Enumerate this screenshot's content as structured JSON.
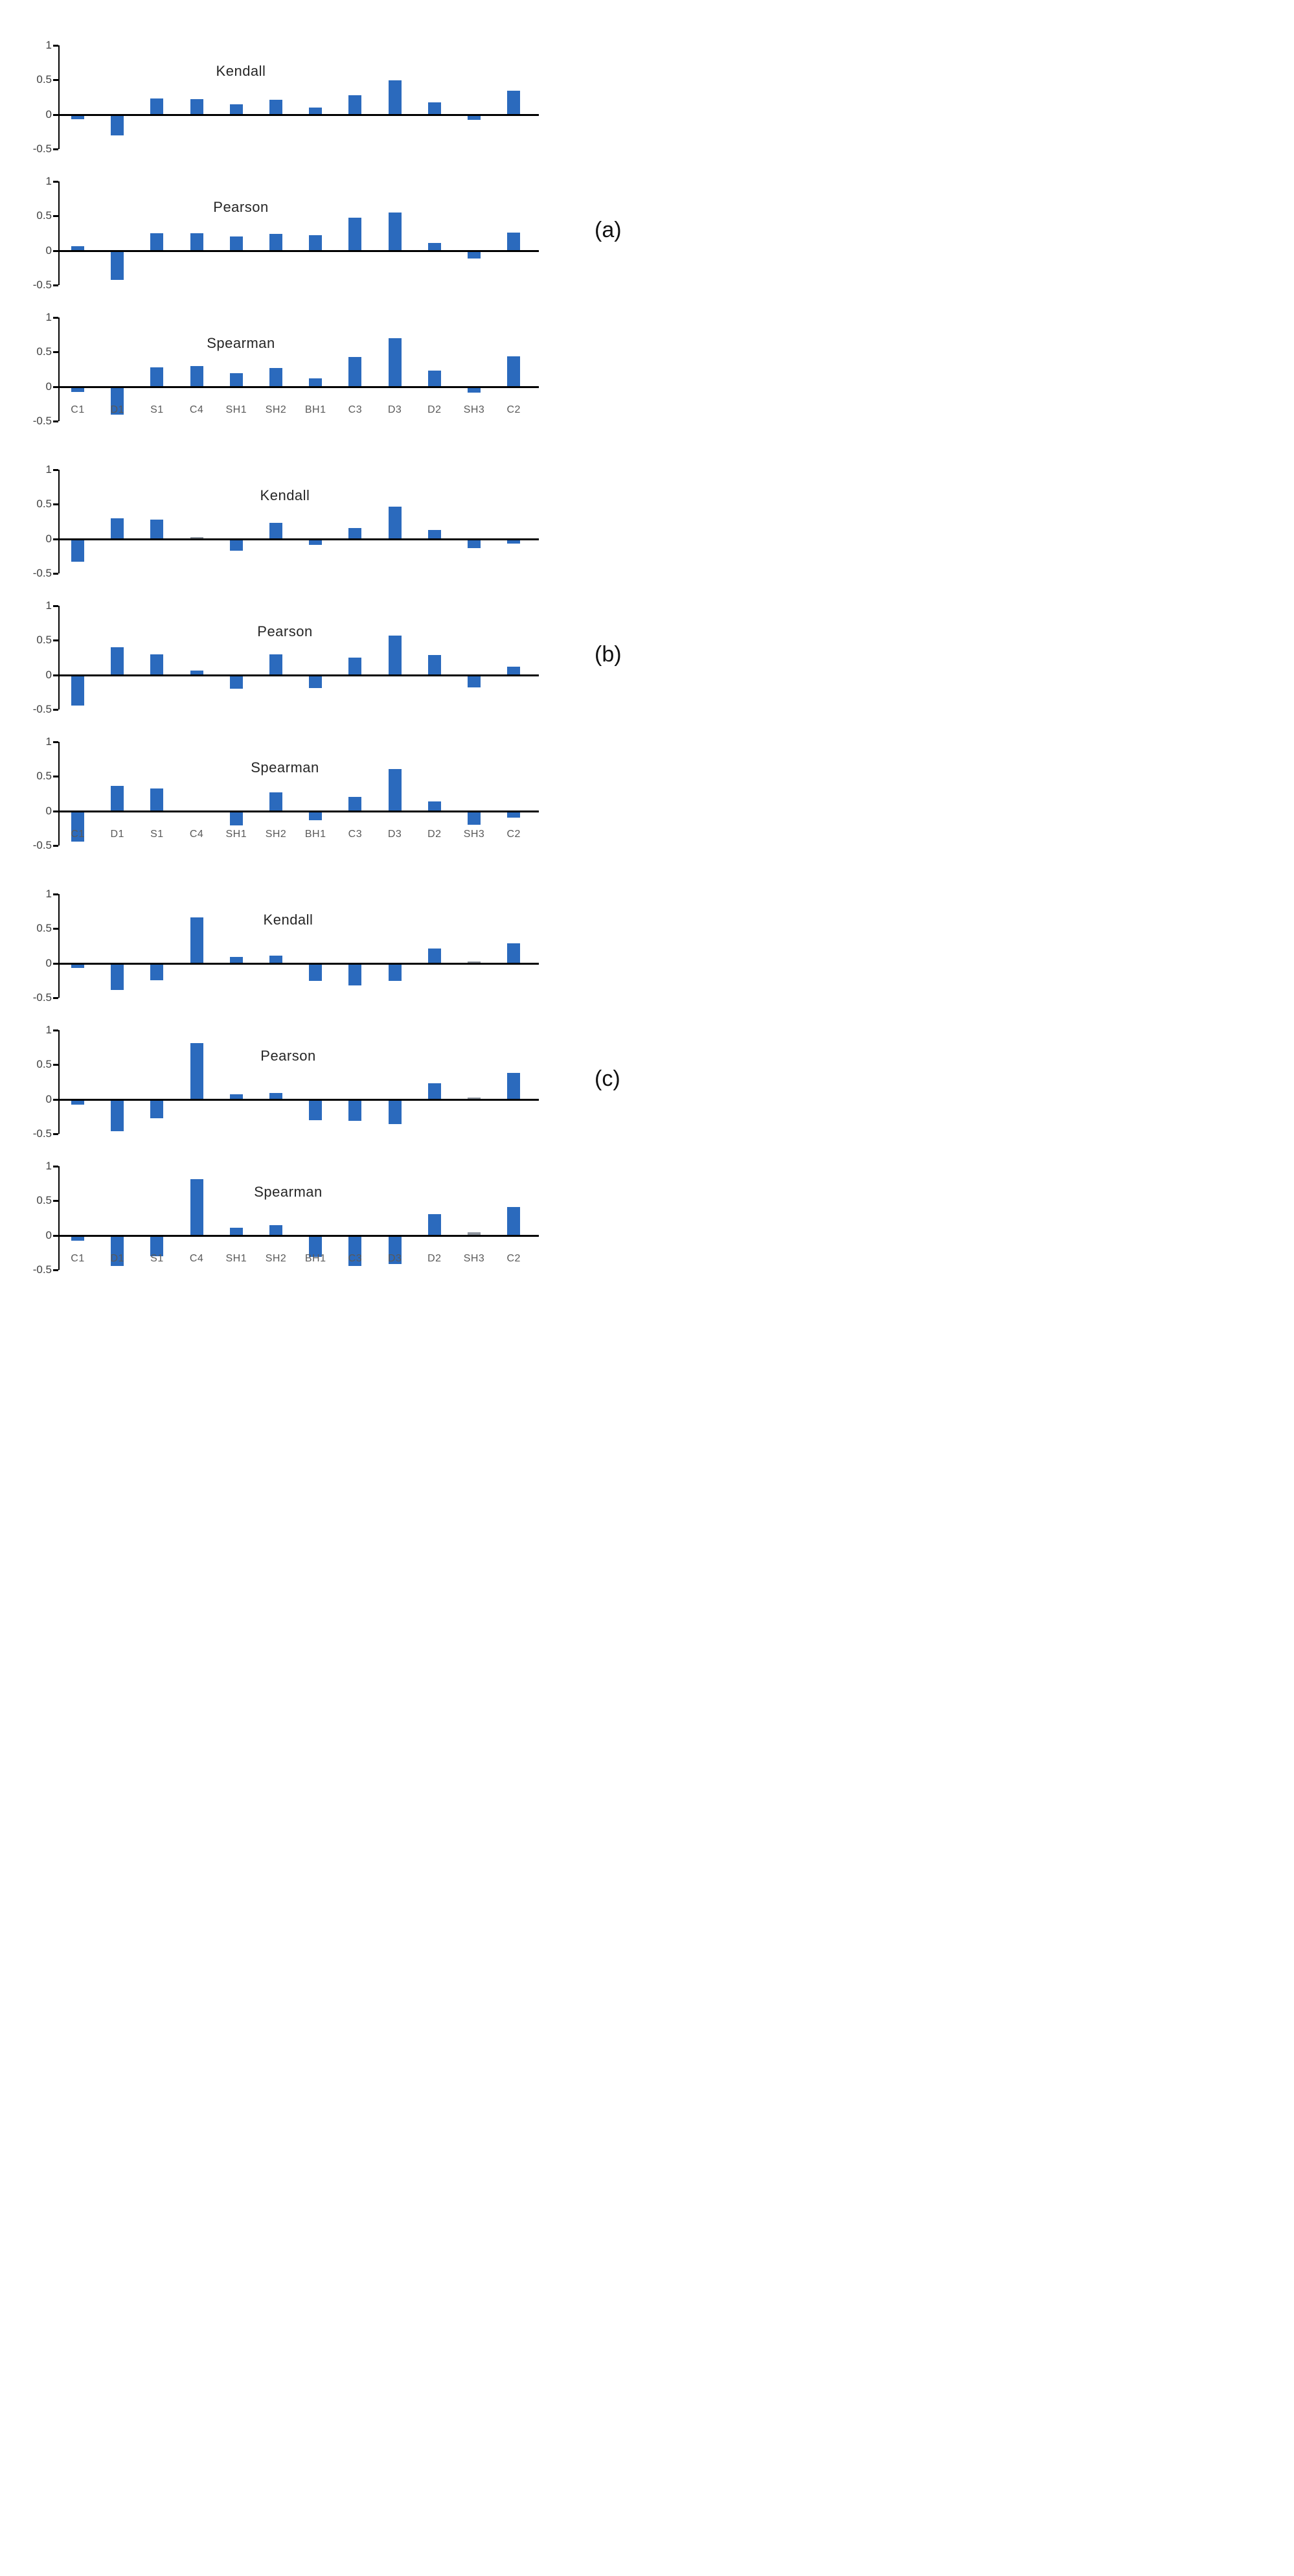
{
  "figure": {
    "background": "#ffffff",
    "bar_color": "#2b6abd",
    "muted_bar_color": "#8e959e",
    "axis_color": "#000000",
    "tick_label_color": "#404040",
    "category_label_color": "#595959",
    "title_color": "#262626",
    "group_labels": [
      "(a)",
      "(b)",
      "(c)"
    ]
  },
  "chart_data": [
    {
      "type": "bar",
      "panel": "a",
      "title": "Kendall",
      "categories": [
        "C1",
        "D1",
        "S1",
        "C4",
        "SH1",
        "SH2",
        "BH1",
        "C3",
        "D3",
        "D2",
        "SH3",
        "C2"
      ],
      "values": [
        -0.05,
        -0.28,
        0.22,
        0.21,
        0.14,
        0.2,
        0.09,
        0.27,
        0.48,
        0.17,
        -0.06,
        0.33
      ],
      "ylim": [
        -0.5,
        1
      ],
      "yticks": [
        1,
        0.5,
        0,
        -0.5
      ],
      "grid": false,
      "x_labels_visible": false
    },
    {
      "type": "bar",
      "panel": "a",
      "title": "Pearson",
      "categories": [
        "C1",
        "D1",
        "S1",
        "C4",
        "SH1",
        "SH2",
        "BH1",
        "C3",
        "D3",
        "D2",
        "SH3",
        "C2"
      ],
      "values": [
        0.05,
        -0.41,
        0.24,
        0.24,
        0.19,
        0.23,
        0.21,
        0.47,
        0.54,
        0.1,
        -0.1,
        0.25
      ],
      "ylim": [
        -0.5,
        1
      ],
      "yticks": [
        1,
        0.5,
        0,
        -0.5
      ],
      "grid": false,
      "x_labels_visible": false
    },
    {
      "type": "bar",
      "panel": "a",
      "title": "Spearman",
      "categories": [
        "C1",
        "D1",
        "S1",
        "C4",
        "SH1",
        "SH2",
        "BH1",
        "C3",
        "D3",
        "D2",
        "SH3",
        "C2"
      ],
      "values": [
        -0.06,
        -0.39,
        0.27,
        0.29,
        0.18,
        0.26,
        0.11,
        0.42,
        0.69,
        0.22,
        -0.07,
        0.43
      ],
      "ylim": [
        -0.5,
        1
      ],
      "yticks": [
        1,
        0.5,
        0,
        -0.5
      ],
      "grid": false,
      "x_labels_visible": true
    },
    {
      "type": "bar",
      "panel": "b",
      "title": "Kendall",
      "categories": [
        "C1",
        "D1",
        "S1",
        "C4",
        "SH1",
        "SH2",
        "BH1",
        "C3",
        "D3",
        "D2",
        "SH3",
        "C2"
      ],
      "values": [
        -0.31,
        0.29,
        0.27,
        0.02,
        -0.15,
        0.22,
        -0.07,
        0.15,
        0.46,
        0.12,
        -0.12,
        -0.05
      ],
      "ylim": [
        -0.5,
        1
      ],
      "yticks": [
        1,
        0.5,
        0,
        -0.5
      ],
      "grid": false,
      "x_labels_visible": false
    },
    {
      "type": "bar",
      "panel": "b",
      "title": "Pearson",
      "categories": [
        "C1",
        "D1",
        "S1",
        "C4",
        "SH1",
        "SH2",
        "BH1",
        "C3",
        "D3",
        "D2",
        "SH3",
        "C2"
      ],
      "values": [
        -0.42,
        0.39,
        0.29,
        0.05,
        -0.18,
        0.29,
        -0.17,
        0.24,
        0.56,
        0.28,
        -0.16,
        0.11
      ],
      "ylim": [
        -0.5,
        1
      ],
      "yticks": [
        1,
        0.5,
        0,
        -0.5
      ],
      "grid": false,
      "x_labels_visible": false
    },
    {
      "type": "bar",
      "panel": "b",
      "title": "Spearman",
      "categories": [
        "C1",
        "D1",
        "S1",
        "C4",
        "SH1",
        "SH2",
        "BH1",
        "C3",
        "D3",
        "D2",
        "SH3",
        "C2"
      ],
      "values": [
        -0.42,
        0.35,
        0.32,
        0,
        -0.19,
        0.26,
        -0.12,
        0.19,
        0.6,
        0.13,
        -0.18,
        -0.08
      ],
      "ylim": [
        -0.5,
        1
      ],
      "yticks": [
        1,
        0.5,
        0,
        -0.5
      ],
      "grid": false,
      "x_labels_visible": true
    },
    {
      "type": "bar",
      "panel": "c",
      "title": "Kendall",
      "categories": [
        "C1",
        "D1",
        "S1",
        "C4",
        "SH1",
        "SH2",
        "BH1",
        "C3",
        "D3",
        "D2",
        "SH3",
        "C2"
      ],
      "values": [
        -0.05,
        -0.37,
        -0.23,
        0.65,
        0.08,
        0.1,
        -0.24,
        -0.3,
        -0.24,
        0.2,
        0.01,
        0.28
      ],
      "ylim": [
        -0.5,
        1
      ],
      "yticks": [
        1,
        0.5,
        0,
        -0.5
      ],
      "grid": false,
      "x_labels_visible": false
    },
    {
      "type": "bar",
      "panel": "c",
      "title": "Pearson",
      "categories": [
        "C1",
        "D1",
        "S1",
        "C4",
        "SH1",
        "SH2",
        "BH1",
        "C3",
        "D3",
        "D2",
        "SH3",
        "C2"
      ],
      "values": [
        -0.06,
        -0.44,
        -0.26,
        0.8,
        0.06,
        0.08,
        -0.28,
        -0.29,
        -0.34,
        0.22,
        0.02,
        0.37
      ],
      "ylim": [
        -0.5,
        1
      ],
      "yticks": [
        1,
        0.5,
        0,
        -0.5
      ],
      "grid": false,
      "x_labels_visible": false
    },
    {
      "type": "bar",
      "panel": "c",
      "title": "Spearman",
      "categories": [
        "C1",
        "D1",
        "S1",
        "C4",
        "SH1",
        "SH2",
        "BH1",
        "C3",
        "D3",
        "D2",
        "SH3",
        "C2"
      ],
      "values": [
        -0.06,
        -0.42,
        -0.28,
        0.8,
        0.1,
        0.14,
        -0.29,
        -0.42,
        -0.4,
        0.3,
        0.03,
        0.4
      ],
      "ylim": [
        -0.5,
        1
      ],
      "yticks": [
        1,
        0.5,
        0,
        -0.5
      ],
      "grid": false,
      "x_labels_visible": true
    }
  ]
}
